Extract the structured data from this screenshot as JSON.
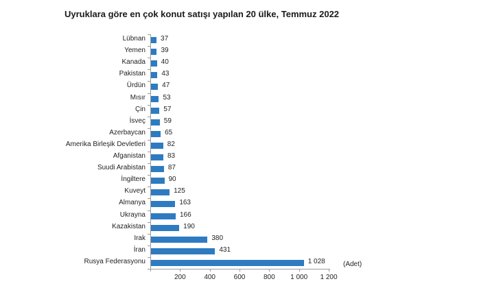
{
  "chart_data": {
    "type": "bar",
    "orientation": "horizontal",
    "title": "Uyruklara göre en çok konut satışı yapılan 20 ülke, Temmuz 2022",
    "xlabel": "",
    "ylabel": "",
    "unit_label": "(Adet)",
    "xlim": [
      0,
      1200
    ],
    "xticks": [
      0,
      200,
      400,
      600,
      800,
      1000,
      1200
    ],
    "xtick_labels": [
      "",
      "200",
      "400",
      "600",
      "800",
      "1 000",
      "1 200"
    ],
    "grid": false,
    "legend": null,
    "bar_color": "#2e7bc1",
    "categories": [
      "Lübnan",
      "Yemen",
      "Kanada",
      "Pakistan",
      "Ürdün",
      "Mısır",
      "Çin",
      "İsveç",
      "Azerbaycan",
      "Amerika Birleşik Devletleri",
      "Afganistan",
      "Suudi Arabistan",
      "İngiltere",
      "Kuveyt",
      "Almanya",
      "Ukrayna",
      "Kazakistan",
      "Irak",
      "İran",
      "Rusya Federasyonu"
    ],
    "values": [
      37,
      39,
      40,
      43,
      47,
      53,
      57,
      59,
      65,
      82,
      83,
      87,
      90,
      125,
      163,
      166,
      190,
      380,
      431,
      1028
    ],
    "value_labels": [
      "37",
      "39",
      "40",
      "43",
      "47",
      "53",
      "57",
      "59",
      "65",
      "82",
      "83",
      "87",
      "90",
      "125",
      "163",
      "166",
      "190",
      "380",
      "431",
      "1 028"
    ]
  }
}
